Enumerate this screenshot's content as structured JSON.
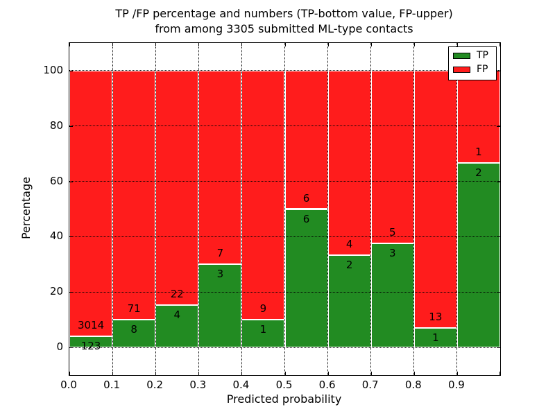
{
  "figure": {
    "title_line1": "TP /FP percentage and numbers (TP-bottom value, FP-upper)",
    "title_line2": "from among 3305 submitted ML-type contacts"
  },
  "chart_data": {
    "type": "bar",
    "stacked": true,
    "title": "TP /FP percentage and numbers (TP-bottom value, FP-upper) from among 3305 submitted ML-type contacts",
    "xlabel": "Predicted probability",
    "ylabel": "Percentage",
    "x_bin_edges": [
      0.0,
      0.1,
      0.2,
      0.3,
      0.4,
      0.5,
      0.6,
      0.7,
      0.8,
      0.9,
      1.0
    ],
    "series": [
      {
        "name": "TP",
        "color": "#228b22",
        "counts": [
          123,
          8,
          4,
          3,
          1,
          6,
          2,
          3,
          1,
          2
        ]
      },
      {
        "name": "FP",
        "color": "#ff1c1c",
        "counts": [
          3014,
          71,
          22,
          7,
          9,
          6,
          4,
          5,
          13,
          1
        ]
      }
    ],
    "tp_percent_of_bin": [
      3.92,
      10.13,
      15.38,
      30.0,
      10.0,
      50.0,
      33.33,
      37.5,
      7.14,
      66.67
    ],
    "bars_stack_to_percent": 100,
    "total_contacts": 3305,
    "xticks": [
      "0.0",
      "0.1",
      "0.2",
      "0.3",
      "0.4",
      "0.5",
      "0.6",
      "0.7",
      "0.8",
      "0.9"
    ],
    "yticks": [
      "0",
      "20",
      "40",
      "60",
      "80",
      "100"
    ],
    "xlim": [
      0.0,
      1.0
    ],
    "ylim": [
      -10,
      110
    ],
    "grid": true,
    "grid_style": "dotted",
    "legend_position": "upper right"
  },
  "legend": {
    "items": [
      {
        "label": "TP",
        "color": "#228b22"
      },
      {
        "label": "FP",
        "color": "#ff1c1c"
      }
    ]
  }
}
